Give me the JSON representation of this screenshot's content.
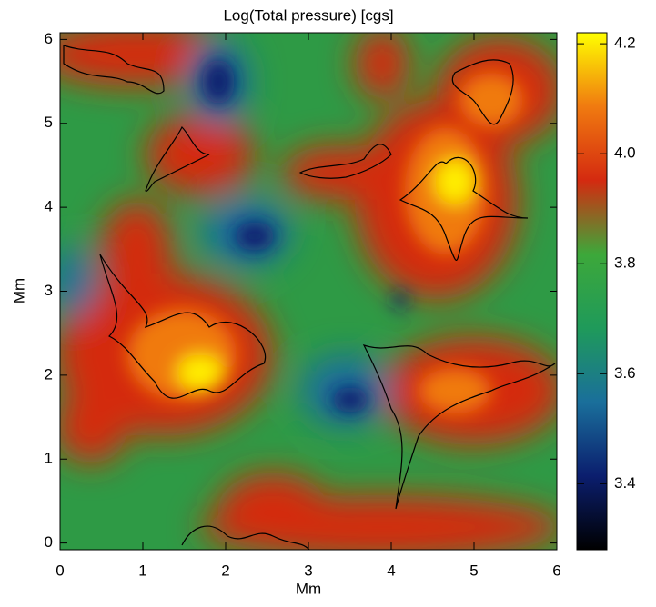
{
  "chart_data": {
    "type": "heatmap",
    "title": "Log(Total pressure) [cgs]",
    "xlabel": "Mm",
    "ylabel": "Mm",
    "xlim": [
      0,
      6
    ],
    "ylim": [
      -0.08,
      6.08
    ],
    "xticks": [
      0,
      1,
      2,
      3,
      4,
      5,
      6
    ],
    "yticks": [
      0,
      1,
      2,
      3,
      4,
      5,
      6
    ],
    "colorbar": {
      "lim": [
        3.28,
        4.22
      ],
      "ticks": [
        3.4,
        3.6,
        3.8,
        4.0,
        4.2
      ],
      "colormap": [
        "#000000",
        "#0b1e6e",
        "#1a6f9b",
        "#1f9a5a",
        "#3da83a",
        "#d42a10",
        "#f07a10",
        "#ffff00"
      ]
    }
  }
}
